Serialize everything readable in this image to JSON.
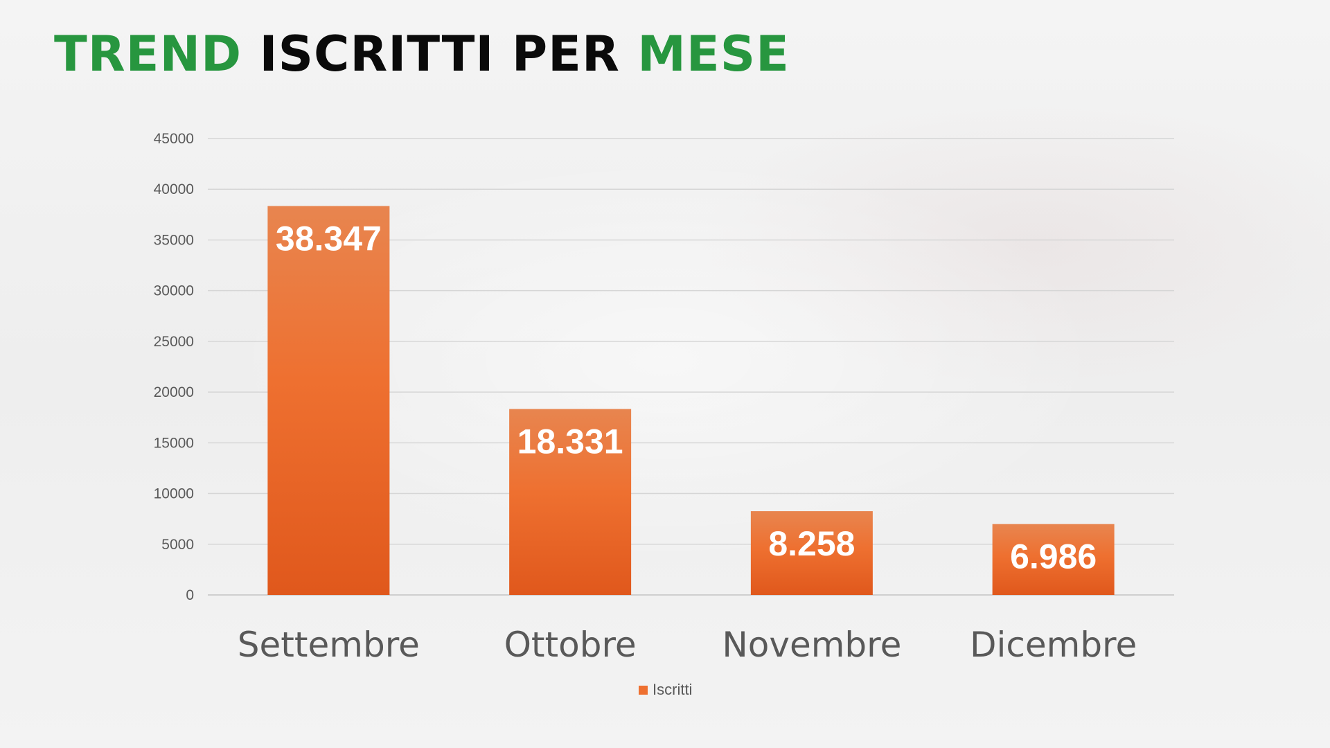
{
  "title": {
    "part1": "TREND",
    "part2": " ISCRITTI PER ",
    "part3": "MESE"
  },
  "colors": {
    "title_green": "#27963f",
    "title_black": "#0a0a0a",
    "bar_top": "#e8854f",
    "bar_mid": "#ee7030",
    "bar_bottom": "#e0581c",
    "axis_text": "#595959",
    "gridline": "#d6d6d6"
  },
  "chart_data": {
    "type": "bar",
    "title": "TREND ISCRITTI PER MESE",
    "categories": [
      "Settembre",
      "Ottobre",
      "Novembre",
      "Dicembre"
    ],
    "series": [
      {
        "name": "Iscritti",
        "values": [
          38347,
          18331,
          8258,
          6986
        ],
        "data_labels": [
          "38.347",
          "18.331",
          "8.258",
          "6.986"
        ]
      }
    ],
    "xlabel": "",
    "ylabel": "",
    "ylim": [
      0,
      45000
    ],
    "yticks": [
      0,
      5000,
      10000,
      15000,
      20000,
      25000,
      30000,
      35000,
      40000,
      45000
    ],
    "ytick_labels": [
      "0",
      "5000",
      "10000",
      "15000",
      "20000",
      "25000",
      "30000",
      "35000",
      "40000",
      "45000"
    ],
    "grid": true,
    "legend": "bottom-center"
  }
}
